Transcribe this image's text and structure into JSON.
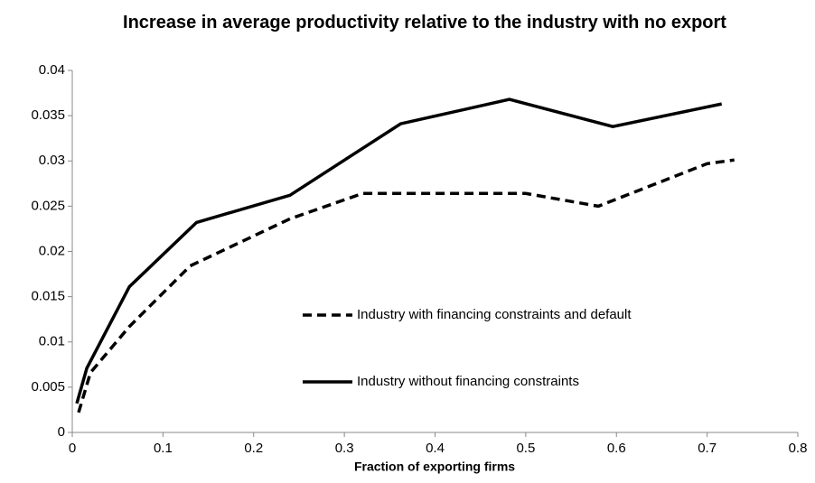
{
  "chart_data": {
    "type": "line",
    "title": "Increase in average productivity relative to the industry with no export",
    "xlabel": "Fraction of exporting firms",
    "xlim": [
      0,
      0.8
    ],
    "xticks": [
      0,
      0.1,
      0.2,
      0.3,
      0.4,
      0.5,
      0.6,
      0.7,
      0.8
    ],
    "ylim": [
      0,
      0.04
    ],
    "yticks": [
      0,
      0.005,
      0.01,
      0.015,
      0.02,
      0.025,
      0.03,
      0.035,
      0.04
    ],
    "grid": false,
    "series": [
      {
        "name": "Industry with financing constraints and default",
        "color": "#000000",
        "dash": true,
        "x": [
          0.007,
          0.02,
          0.063,
          0.13,
          0.24,
          0.32,
          0.5,
          0.58,
          0.7,
          0.73
        ],
        "values": [
          0.0022,
          0.0066,
          0.0117,
          0.0184,
          0.0236,
          0.0264,
          0.0264,
          0.025,
          0.0297,
          0.0301
        ]
      },
      {
        "name": "Industry without financing constraints",
        "color": "#000000",
        "dash": false,
        "x": [
          0.005,
          0.016,
          0.063,
          0.137,
          0.24,
          0.362,
          0.482,
          0.596,
          0.716
        ],
        "values": [
          0.0032,
          0.0071,
          0.0161,
          0.0232,
          0.0262,
          0.0341,
          0.0368,
          0.0338,
          0.0363
        ]
      }
    ]
  }
}
